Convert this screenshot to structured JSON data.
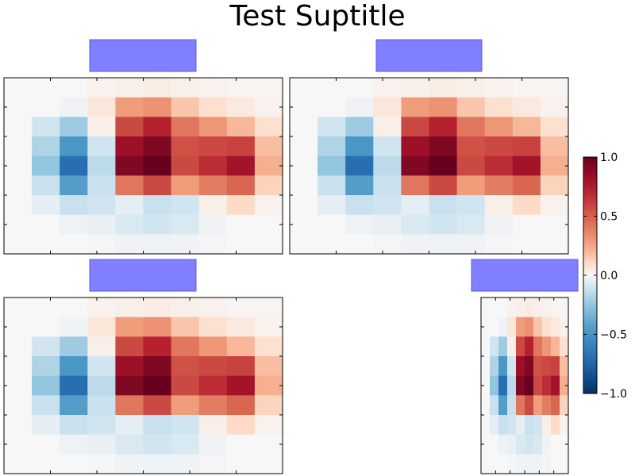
{
  "suptitle": "Test Suptitle",
  "chart_data": {
    "type": "heatmap",
    "colormap": "RdBu_r",
    "colorbar": {
      "ticks": [
        "1.0",
        "0.5",
        "0.0",
        "−0.5",
        "−1.0"
      ],
      "tick_values": [
        1.0,
        0.5,
        0.0,
        -0.5,
        -1.0
      ],
      "range": [
        -1.0,
        1.0
      ]
    },
    "title_box_color": "#8080ff",
    "panels": [
      "top-left",
      "top-right",
      "bottom-left",
      "bottom-right"
    ],
    "values": [
      [
        0.0,
        0.0,
        0.0,
        0.02,
        0.03,
        0.04,
        0.03,
        0.02,
        0.01,
        0.01
      ],
      [
        0.0,
        0.0,
        -0.02,
        0.06,
        0.28,
        0.32,
        0.16,
        0.08,
        0.05,
        0.02
      ],
      [
        0.0,
        -0.1,
        -0.22,
        0.03,
        0.58,
        0.72,
        0.42,
        0.3,
        0.2,
        0.08
      ],
      [
        0.0,
        -0.18,
        -0.48,
        -0.1,
        0.82,
        0.92,
        0.55,
        0.58,
        0.6,
        0.18
      ],
      [
        0.0,
        -0.25,
        -0.7,
        -0.15,
        0.92,
        1.0,
        0.58,
        0.68,
        0.8,
        0.22
      ],
      [
        0.0,
        -0.12,
        -0.45,
        -0.12,
        0.42,
        0.58,
        0.28,
        0.4,
        0.48,
        0.12
      ],
      [
        0.0,
        -0.05,
        -0.12,
        -0.1,
        -0.05,
        -0.12,
        -0.1,
        0.03,
        0.1,
        0.02
      ],
      [
        0.0,
        0.0,
        -0.03,
        -0.04,
        -0.08,
        -0.1,
        -0.08,
        -0.02,
        0.0,
        0.0
      ],
      [
        0.0,
        0.0,
        0.0,
        -0.01,
        -0.02,
        -0.03,
        -0.02,
        -0.01,
        0.0,
        0.0
      ]
    ]
  }
}
